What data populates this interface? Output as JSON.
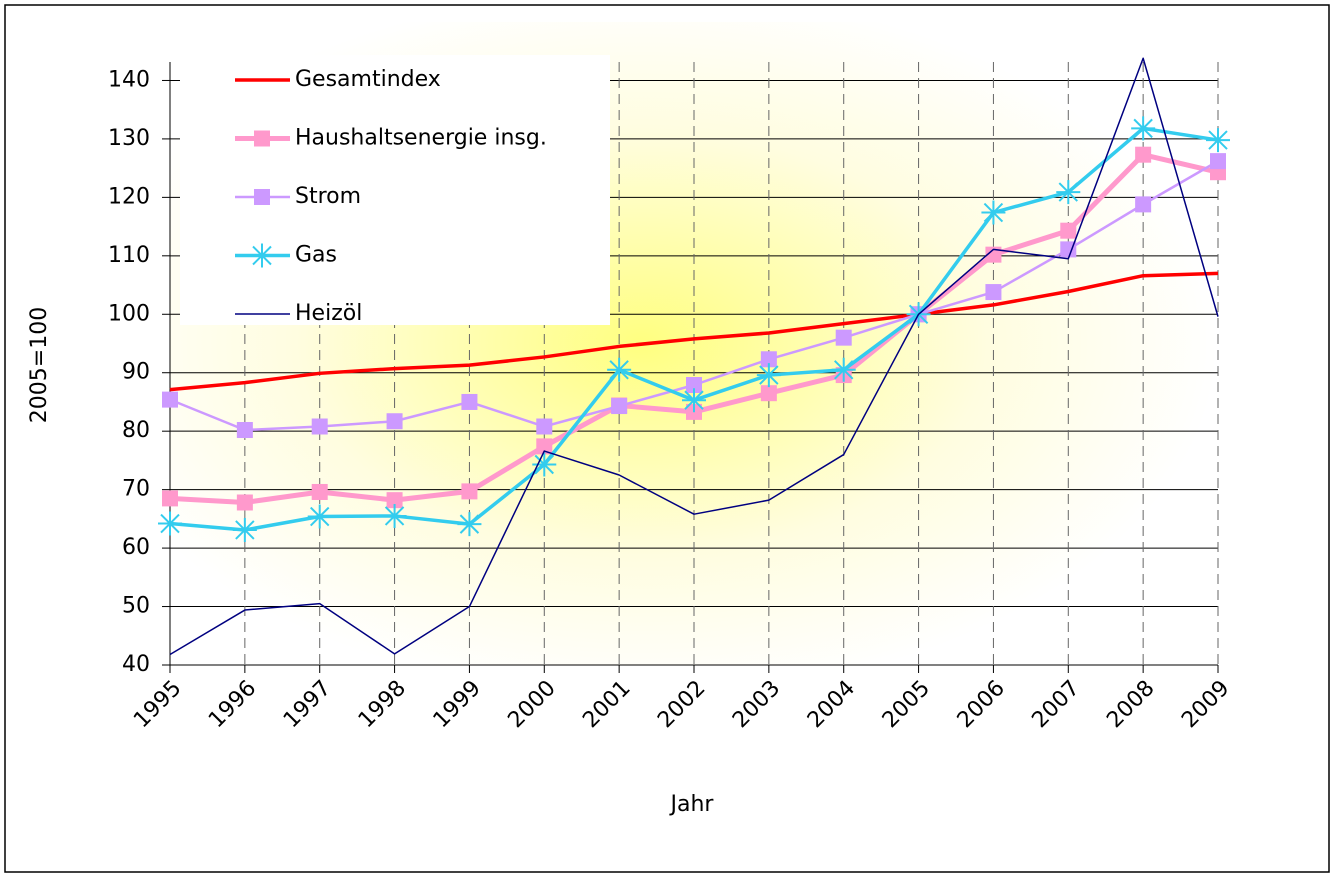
{
  "chart_data": {
    "type": "line",
    "x_label": "Jahr",
    "y_label": "2005=100",
    "categories": [
      "1995",
      "1996",
      "1997",
      "1998",
      "1999",
      "2000",
      "2001",
      "2002",
      "2003",
      "2004",
      "2005",
      "2006",
      "2007",
      "2008",
      "2009"
    ],
    "ylim": [
      40,
      150
    ],
    "yticks": [
      40,
      50,
      60,
      70,
      80,
      90,
      100,
      110,
      120,
      130,
      140
    ],
    "grid": true,
    "legend": "upper left",
    "series": [
      {
        "name": "Gesamtindex",
        "color": "#ff0000",
        "marker": "none",
        "values": [
          87.1,
          88.3,
          89.9,
          90.7,
          91.3,
          92.7,
          94.5,
          95.8,
          96.8,
          98.4,
          100,
          101.6,
          103.9,
          106.6,
          107.0
        ]
      },
      {
        "name": "Haushaltsenergie insg.",
        "color": "#ff99cc",
        "marker": "square",
        "values": [
          68.5,
          67.8,
          69.6,
          68.2,
          69.7,
          77.4,
          84.4,
          83.3,
          86.5,
          89.6,
          100,
          110.2,
          114.3,
          127.3,
          124.3
        ]
      },
      {
        "name": "Strom",
        "color": "#cc99ff",
        "marker": "square",
        "values": [
          85.4,
          80.2,
          80.8,
          81.7,
          85.0,
          80.8,
          84.3,
          87.9,
          92.3,
          96.0,
          100,
          103.8,
          111.1,
          118.8,
          126.2
        ]
      },
      {
        "name": "Gas",
        "color": "#33ccee",
        "marker": "star",
        "values": [
          64.2,
          63.1,
          65.4,
          65.5,
          64.1,
          74.3,
          90.5,
          85.3,
          89.6,
          90.5,
          100,
          117.4,
          120.9,
          131.8,
          129.8
        ]
      },
      {
        "name": "Heizöl",
        "color": "#000080",
        "marker": "none",
        "values": [
          41.8,
          49.4,
          50.5,
          41.9,
          50.0,
          76.6,
          72.5,
          65.8,
          68.2,
          76.0,
          100,
          111.1,
          109.5,
          143.8,
          99.6
        ]
      }
    ]
  }
}
